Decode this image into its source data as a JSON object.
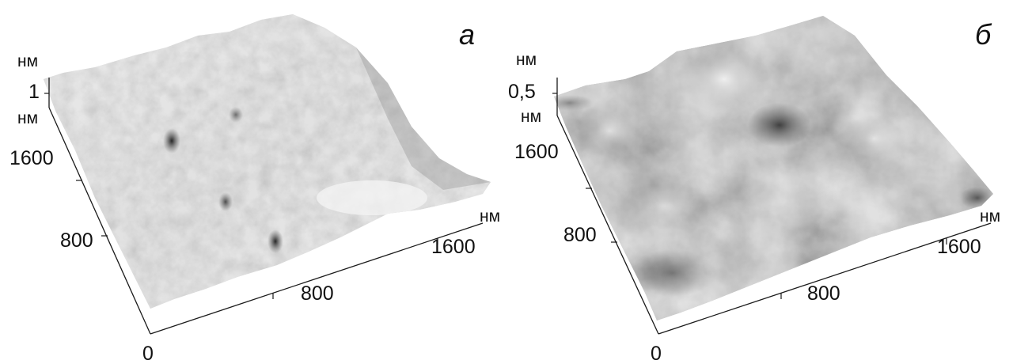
{
  "panels": [
    {
      "id": "a",
      "letter": "а",
      "z_unit": "нм",
      "z_tick": "1",
      "y_unit": "нм",
      "y_ticks": [
        "1600",
        "800"
      ],
      "x_unit": "нм",
      "x_ticks": [
        "800",
        "1600"
      ],
      "origin": "0"
    },
    {
      "id": "b",
      "letter": "б",
      "z_unit": "нм",
      "z_tick": "0,5",
      "y_unit": "нм",
      "y_ticks": [
        "1600",
        "800"
      ],
      "x_unit": "нм",
      "x_ticks": [
        "800",
        "1600"
      ],
      "origin": "0"
    }
  ]
}
